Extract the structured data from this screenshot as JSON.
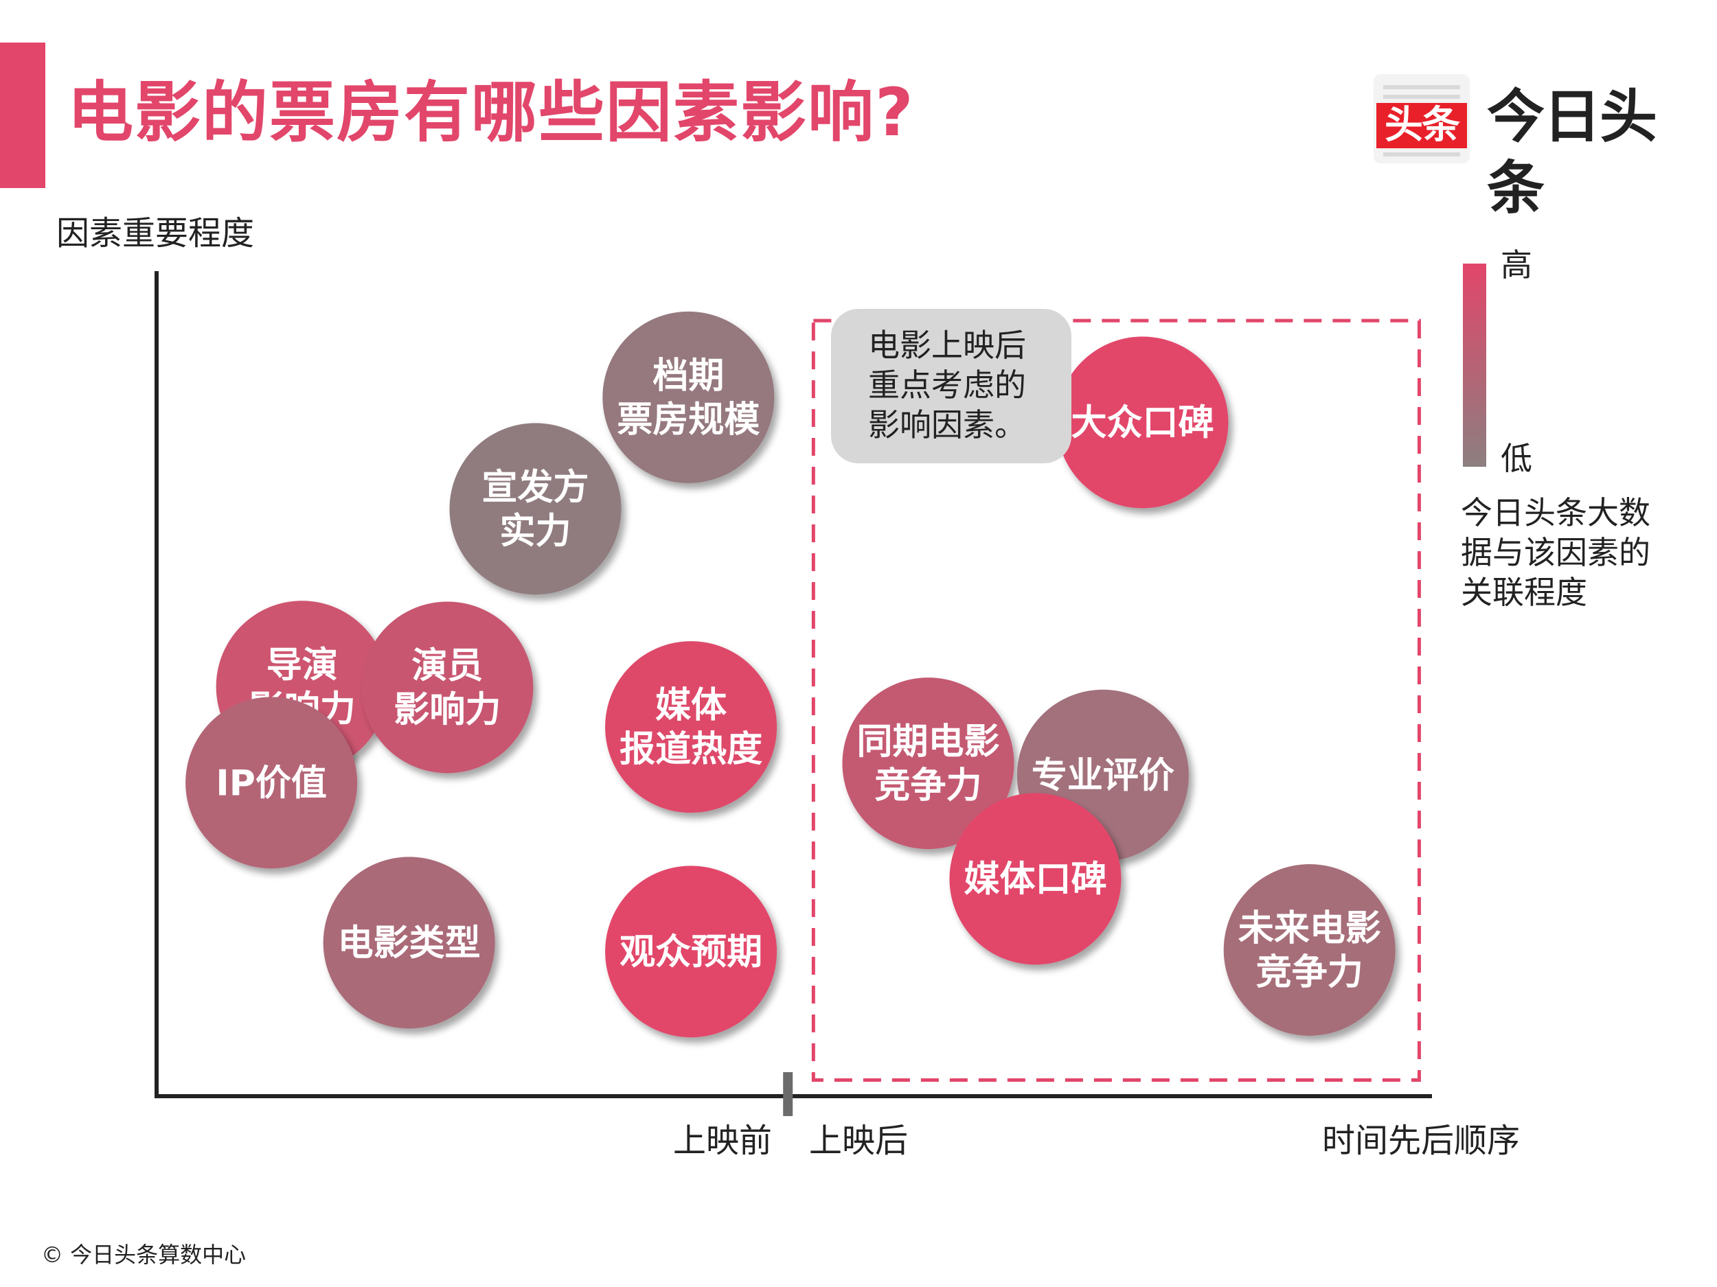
{
  "title": "电影的票房有哪些因素影响?",
  "brand": {
    "icon_text": "头条",
    "name": "今日头条",
    "icon_color": "#e8202a"
  },
  "colors": {
    "accent": "#e2466a",
    "high": "#e2466a",
    "low": "#8c7f80",
    "axis": "#222222",
    "dashed_box": "#e2466a"
  },
  "footer": "© 今日头条算数中心",
  "note": "电影上映后\n重点考虑的\n影响因素。",
  "legend": {
    "high": "高",
    "low": "低",
    "description": "今日头条大数\n据与该因素的\n关联程度"
  },
  "chart_data": {
    "type": "scatter",
    "title": "电影的票房有哪些因素影响?",
    "ylabel": "因素重要程度",
    "xlabel": "时间先后顺序",
    "x_divider_labels": [
      "上映前",
      "上映后"
    ],
    "color_scale": {
      "meaning": "今日头条大数据与该因素的关联程度",
      "min_label": "低",
      "max_label": "高"
    },
    "xlim": [
      0,
      100
    ],
    "ylim": [
      0,
      100
    ],
    "divider_x": 49.5,
    "highlight_region": {
      "x": [
        51.5,
        99
      ],
      "y": [
        2,
        96
      ],
      "label": "电影上映后重点考虑的影响因素。"
    },
    "points": [
      {
        "name": "档期\n票房规模",
        "x": 41.7,
        "y": 86.5,
        "relevance": 0.1
      },
      {
        "name": "宣发方\n实力",
        "x": 29.7,
        "y": 72.7,
        "relevance": 0.05
      },
      {
        "name": "导演\n影响力",
        "x": 11.4,
        "y": 50.7,
        "relevance": 0.75
      },
      {
        "name": "演员\n影响力",
        "x": 22.8,
        "y": 50.6,
        "relevance": 0.7
      },
      {
        "name": "IP价值",
        "x": 9.0,
        "y": 38.8,
        "relevance": 0.45
      },
      {
        "name": "媒体\n报道热度",
        "x": 41.9,
        "y": 45.7,
        "relevance": 0.95
      },
      {
        "name": "电影类型",
        "x": 19.8,
        "y": 19.0,
        "relevance": 0.35
      },
      {
        "name": "观众预期",
        "x": 41.9,
        "y": 17.9,
        "relevance": 1.0
      },
      {
        "name": "大众口碑",
        "x": 77.3,
        "y": 83.4,
        "relevance": 1.0
      },
      {
        "name": "同期电影\n竞争力",
        "x": 60.5,
        "y": 41.2,
        "relevance": 0.65
      },
      {
        "name": "专业评价",
        "x": 74.2,
        "y": 39.7,
        "relevance": 0.25
      },
      {
        "name": "媒体口碑",
        "x": 68.9,
        "y": 26.9,
        "relevance": 1.0
      },
      {
        "name": "未来电影\n竞争力",
        "x": 90.4,
        "y": 18.1,
        "relevance": 0.3
      }
    ]
  }
}
